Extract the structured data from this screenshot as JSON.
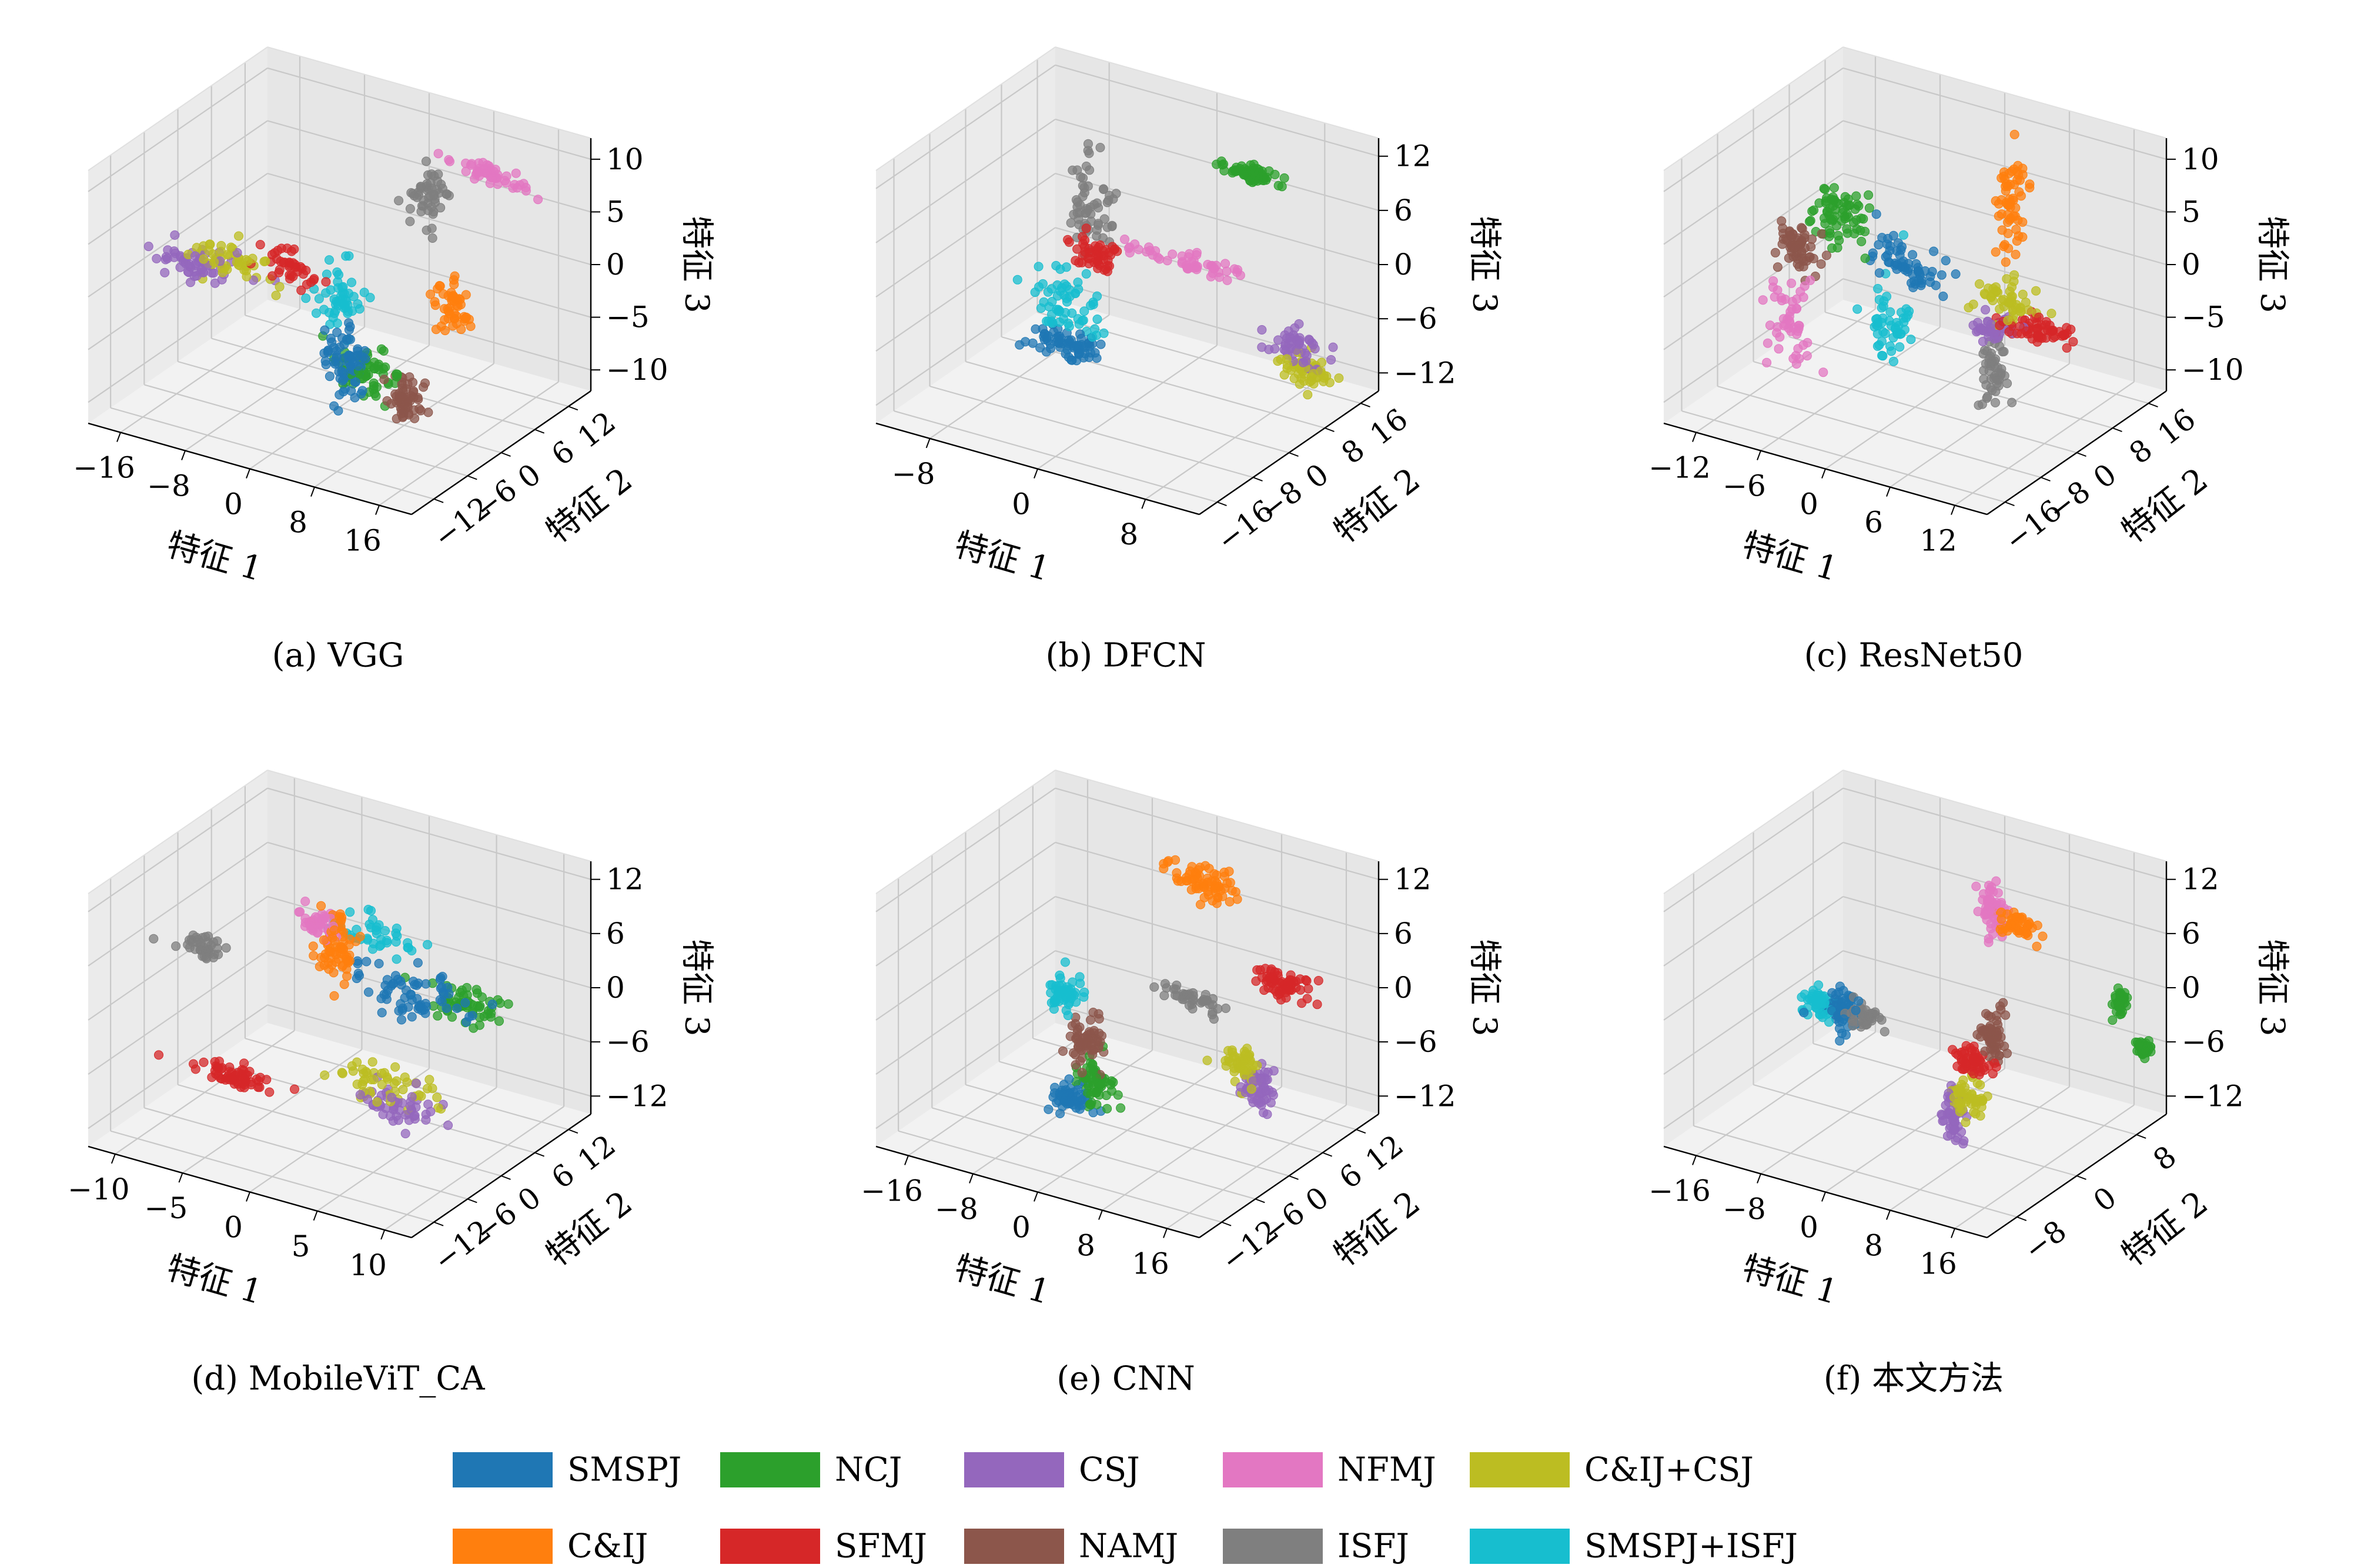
{
  "figure": {
    "legend": [
      {
        "name": "SMSPJ",
        "color": "#1f77b4"
      },
      {
        "name": "NCJ",
        "color": "#2ca02c"
      },
      {
        "name": "CSJ",
        "color": "#9467bd"
      },
      {
        "name": "NFMJ",
        "color": "#e377c2"
      },
      {
        "name": "C&IJ+CSJ",
        "color": "#bcbd22"
      },
      {
        "name": "C&IJ",
        "color": "#ff7f0e"
      },
      {
        "name": "SFMJ",
        "color": "#d62728"
      },
      {
        "name": "NAMJ",
        "color": "#8c564b"
      },
      {
        "name": "ISFJ",
        "color": "#7f7f7f"
      },
      {
        "name": "SMSPJ+ISFJ",
        "color": "#17becf"
      }
    ]
  },
  "chart_data": [
    {
      "type": "scatter",
      "caption": "(a) VGG",
      "xlabel": "特征 1",
      "ylabel": "特征 2",
      "zlabel": "特征 3",
      "x_ticks": [
        -16,
        -8,
        0,
        8,
        16
      ],
      "y_ticks": [
        -12,
        -6,
        0,
        6,
        12
      ],
      "z_ticks": [
        -10,
        -5,
        0,
        5,
        10
      ],
      "xlim": [
        -20,
        20
      ],
      "ylim": [
        -16,
        16
      ],
      "zlim": [
        -12,
        12
      ],
      "grid": true,
      "clusters": [
        {
          "name": "NFMJ",
          "center": [
            12,
            10,
            9
          ],
          "spread": [
            2.5,
            0.4,
            0.4
          ],
          "n": 50
        },
        {
          "name": "ISFJ",
          "center": [
            4,
            10,
            5
          ],
          "spread": [
            1.2,
            0.4,
            1.4
          ],
          "n": 50
        },
        {
          "name": "CSJ",
          "center": [
            -16,
            -2,
            -1
          ],
          "spread": [
            2.5,
            0.4,
            0.8
          ],
          "n": 60
        },
        {
          "name": "C&IJ+CSJ",
          "center": [
            -12,
            -2,
            0
          ],
          "spread": [
            2.5,
            0.4,
            0.8
          ],
          "n": 50
        },
        {
          "name": "SFMJ",
          "center": [
            -5,
            -2,
            1
          ],
          "spread": [
            2.0,
            0.4,
            0.8
          ],
          "n": 40
        },
        {
          "name": "SMSPJ+ISFJ",
          "center": [
            -1,
            2,
            -3
          ],
          "spread": [
            1.2,
            0.4,
            1.5
          ],
          "n": 50
        },
        {
          "name": "C&IJ",
          "center": [
            10,
            6,
            -3
          ],
          "spread": [
            1.0,
            0.4,
            1.2
          ],
          "n": 50
        },
        {
          "name": "SMSPJ",
          "center": [
            0,
            1,
            -8
          ],
          "spread": [
            1.2,
            0.5,
            1.5
          ],
          "n": 70
        },
        {
          "name": "NCJ",
          "center": [
            2,
            2,
            -9
          ],
          "spread": [
            2.0,
            0.6,
            1.2
          ],
          "n": 60
        },
        {
          "name": "NAMJ",
          "center": [
            6,
            3,
            -11
          ],
          "spread": [
            1.0,
            0.6,
            1.2
          ],
          "n": 60
        }
      ]
    },
    {
      "type": "scatter",
      "caption": "(b) DFCN",
      "xlabel": "特征 1",
      "ylabel": "特征 2",
      "zlabel": "特征 3",
      "x_ticks": [
        -8,
        0,
        8
      ],
      "y_ticks": [
        -16,
        -8,
        0,
        8,
        16
      ],
      "z_ticks": [
        -12,
        -6,
        0,
        6,
        12
      ],
      "xlim": [
        -12,
        12
      ],
      "ylim": [
        -20,
        20
      ],
      "zlim": [
        -14,
        14
      ],
      "grid": true,
      "clusters": [
        {
          "name": "NCJ",
          "center": [
            4,
            16,
            8
          ],
          "spread": [
            1.2,
            0.4,
            0.4
          ],
          "n": 60
        },
        {
          "name": "ISFJ",
          "center": [
            -4,
            4,
            5
          ],
          "spread": [
            0.8,
            0.5,
            2.5
          ],
          "n": 60
        },
        {
          "name": "SFMJ",
          "center": [
            -3,
            2,
            1
          ],
          "spread": [
            0.8,
            0.5,
            1.0
          ],
          "n": 50
        },
        {
          "name": "NFMJ",
          "center": [
            3,
            4,
            2
          ],
          "spread": [
            2.5,
            0.4,
            0.5
          ],
          "n": 50
        },
        {
          "name": "SMSPJ+ISFJ",
          "center": [
            -5,
            2,
            -5
          ],
          "spread": [
            1.2,
            0.5,
            2.0
          ],
          "n": 60
        },
        {
          "name": "SMSPJ",
          "center": [
            -5,
            2,
            -10
          ],
          "spread": [
            1.2,
            0.5,
            1.0
          ],
          "n": 70
        },
        {
          "name": "CSJ",
          "center": [
            8,
            14,
            -9
          ],
          "spread": [
            1.0,
            0.5,
            1.0
          ],
          "n": 50
        },
        {
          "name": "C&IJ+CSJ",
          "center": [
            9,
            14,
            -11
          ],
          "spread": [
            1.0,
            0.5,
            1.0
          ],
          "n": 50
        }
      ]
    },
    {
      "type": "scatter",
      "caption": "(c) ResNet50",
      "xlabel": "特征 1",
      "ylabel": "特征 2",
      "zlabel": "特征 3",
      "x_ticks": [
        -12,
        -6,
        0,
        6,
        12
      ],
      "y_ticks": [
        -16,
        -8,
        0,
        8,
        16
      ],
      "z_ticks": [
        -10,
        -5,
        0,
        5,
        10
      ],
      "xlim": [
        -15,
        15
      ],
      "ylim": [
        -20,
        20
      ],
      "zlim": [
        -12,
        12
      ],
      "grid": true,
      "clusters": [
        {
          "name": "C&IJ",
          "center": [
            4,
            12,
            5
          ],
          "spread": [
            0.6,
            0.4,
            2.5
          ],
          "n": 60
        },
        {
          "name": "NCJ",
          "center": [
            -8,
            2,
            3
          ],
          "spread": [
            1.5,
            0.5,
            1.5
          ],
          "n": 70
        },
        {
          "name": "NAMJ",
          "center": [
            -11,
            0,
            0
          ],
          "spread": [
            1.0,
            0.5,
            1.2
          ],
          "n": 60
        },
        {
          "name": "SMSPJ",
          "center": [
            -2,
            4,
            0
          ],
          "spread": [
            2.0,
            0.5,
            1.2
          ],
          "n": 60
        },
        {
          "name": "NFMJ",
          "center": [
            -11,
            -2,
            -6
          ],
          "spread": [
            1.0,
            0.5,
            2.0
          ],
          "n": 50
        },
        {
          "name": "SMSPJ+ISFJ",
          "center": [
            -4,
            4,
            -6
          ],
          "spread": [
            1.0,
            0.5,
            2.0
          ],
          "n": 50
        },
        {
          "name": "C&IJ+CSJ",
          "center": [
            6,
            6,
            -2
          ],
          "spread": [
            1.5,
            0.5,
            1.0
          ],
          "n": 50
        },
        {
          "name": "SFMJ",
          "center": [
            9,
            6,
            -4
          ],
          "spread": [
            2.0,
            0.5,
            0.6
          ],
          "n": 60
        },
        {
          "name": "CSJ",
          "center": [
            5,
            6,
            -5
          ],
          "spread": [
            1.0,
            0.5,
            0.6
          ],
          "n": 40
        },
        {
          "name": "ISFJ",
          "center": [
            4,
            8,
            -10
          ],
          "spread": [
            0.6,
            0.4,
            1.8
          ],
          "n": 50
        }
      ]
    },
    {
      "type": "scatter",
      "caption": "(d) MobileViT_CA",
      "xlabel": "特征 1",
      "ylabel": "特征 2",
      "zlabel": "特征 3",
      "x_ticks": [
        -10,
        -5,
        0,
        5,
        10
      ],
      "y_ticks": [
        -12,
        -6,
        0,
        6,
        12
      ],
      "z_ticks": [
        -12,
        -6,
        0,
        6,
        12
      ],
      "xlim": [
        -12,
        12
      ],
      "ylim": [
        -16,
        16
      ],
      "zlim": [
        -14,
        14
      ],
      "grid": true,
      "clusters": [
        {
          "name": "ISFJ",
          "center": [
            -10,
            0,
            2
          ],
          "spread": [
            1.0,
            0.5,
            0.6
          ],
          "n": 40
        },
        {
          "name": "NFMJ",
          "center": [
            -3,
            4,
            6
          ],
          "spread": [
            0.8,
            0.5,
            0.8
          ],
          "n": 40
        },
        {
          "name": "C&IJ",
          "center": [
            -2,
            4,
            4
          ],
          "spread": [
            0.8,
            0.5,
            2.0
          ],
          "n": 70
        },
        {
          "name": "SMSPJ+ISFJ",
          "center": [
            0,
            6,
            5
          ],
          "spread": [
            2.0,
            0.5,
            1.0
          ],
          "n": 40
        },
        {
          "name": "SMSPJ",
          "center": [
            3,
            6,
            0
          ],
          "spread": [
            2.0,
            0.5,
            1.5
          ],
          "n": 70
        },
        {
          "name": "NCJ",
          "center": [
            6,
            8,
            -1
          ],
          "spread": [
            1.5,
            0.5,
            1.2
          ],
          "n": 60
        },
        {
          "name": "SFMJ",
          "center": [
            -7,
            -2,
            -10
          ],
          "spread": [
            1.8,
            0.5,
            0.6
          ],
          "n": 60
        },
        {
          "name": "C&IJ+CSJ",
          "center": [
            2,
            4,
            -10
          ],
          "spread": [
            2.0,
            0.5,
            1.2
          ],
          "n": 50
        },
        {
          "name": "CSJ",
          "center": [
            3,
            4,
            -12
          ],
          "spread": [
            1.5,
            0.5,
            1.0
          ],
          "n": 50
        }
      ]
    },
    {
      "type": "scatter",
      "caption": "(e) CNN",
      "xlabel": "特征 1",
      "ylabel": "特征 2",
      "zlabel": "特征 3",
      "x_ticks": [
        -16,
        -8,
        0,
        8,
        16
      ],
      "y_ticks": [
        -12,
        -6,
        0,
        6,
        12
      ],
      "z_ticks": [
        -12,
        -6,
        0,
        6,
        12
      ],
      "xlim": [
        -20,
        20
      ],
      "ylim": [
        -16,
        16
      ],
      "zlim": [
        -14,
        14
      ],
      "grid": true,
      "clusters": [
        {
          "name": "C&IJ",
          "center": [
            4,
            8,
            11
          ],
          "spread": [
            2.0,
            0.5,
            1.0
          ],
          "n": 70
        },
        {
          "name": "ISFJ",
          "center": [
            4,
            6,
            -1
          ],
          "spread": [
            2.0,
            0.5,
            0.5
          ],
          "n": 40
        },
        {
          "name": "SFMJ",
          "center": [
            12,
            10,
            1
          ],
          "spread": [
            1.5,
            0.5,
            0.8
          ],
          "n": 60
        },
        {
          "name": "SMSPJ+ISFJ",
          "center": [
            -8,
            0,
            -1
          ],
          "spread": [
            1.0,
            0.5,
            1.0
          ],
          "n": 50
        },
        {
          "name": "NAMJ",
          "center": [
            -5,
            0,
            -5
          ],
          "spread": [
            1.2,
            0.5,
            1.2
          ],
          "n": 60
        },
        {
          "name": "NCJ",
          "center": [
            -4,
            0,
            -10
          ],
          "spread": [
            1.2,
            0.5,
            1.5
          ],
          "n": 60
        },
        {
          "name": "SMSPJ",
          "center": [
            -7,
            0,
            -12
          ],
          "spread": [
            1.2,
            0.5,
            0.8
          ],
          "n": 60
        },
        {
          "name": "C&IJ+CSJ",
          "center": [
            9,
            8,
            -8
          ],
          "spread": [
            1.2,
            0.5,
            1.0
          ],
          "n": 50
        },
        {
          "name": "CSJ",
          "center": [
            11,
            8,
            -10
          ],
          "spread": [
            1.2,
            0.5,
            1.0
          ],
          "n": 60
        }
      ]
    },
    {
      "type": "scatter",
      "caption": "(f) 本文方法",
      "xlabel": "特征 1",
      "ylabel": "特征 2",
      "zlabel": "特征 3",
      "x_ticks": [
        -16,
        -8,
        0,
        8,
        16
      ],
      "y_ticks": [
        -8,
        0,
        8
      ],
      "z_ticks": [
        -12,
        -6,
        0,
        6,
        12
      ],
      "xlim": [
        -20,
        20
      ],
      "ylim": [
        -12,
        12
      ],
      "zlim": [
        -14,
        14
      ],
      "grid": true,
      "clusters": [
        {
          "name": "NFMJ",
          "center": [
            4,
            6,
            8
          ],
          "spread": [
            0.8,
            0.4,
            1.2
          ],
          "n": 60
        },
        {
          "name": "C&IJ",
          "center": [
            7,
            6,
            7
          ],
          "spread": [
            1.2,
            0.4,
            0.6
          ],
          "n": 50
        },
        {
          "name": "SMSPJ+ISFJ",
          "center": [
            -12,
            0,
            -3
          ],
          "spread": [
            1.0,
            0.4,
            0.8
          ],
          "n": 50
        },
        {
          "name": "SMSPJ",
          "center": [
            -9,
            0,
            -3
          ],
          "spread": [
            1.0,
            0.4,
            1.2
          ],
          "n": 60
        },
        {
          "name": "ISFJ",
          "center": [
            -6,
            0,
            -3
          ],
          "spread": [
            1.0,
            0.4,
            0.6
          ],
          "n": 40
        },
        {
          "name": "NAMJ",
          "center": [
            6,
            4,
            -4
          ],
          "spread": [
            0.8,
            0.4,
            1.2
          ],
          "n": 60
        },
        {
          "name": "SFMJ",
          "center": [
            4,
            3,
            -7
          ],
          "spread": [
            1.2,
            0.4,
            0.6
          ],
          "n": 50
        },
        {
          "name": "C&IJ+CSJ",
          "center": [
            4,
            3,
            -11
          ],
          "spread": [
            1.2,
            0.4,
            1.0
          ],
          "n": 50
        },
        {
          "name": "CSJ",
          "center": [
            2,
            3,
            -14
          ],
          "spread": [
            0.6,
            0.4,
            1.5
          ],
          "n": 50
        },
        {
          "name": "NCJ",
          "center": [
            18,
            8,
            0
          ],
          "spread": [
            0.4,
            0.3,
            0.6
          ],
          "n": 40
        },
        {
          "name": "NCJ",
          "center": [
            20,
            9,
            -5
          ],
          "spread": [
            0.4,
            0.3,
            0.4
          ],
          "n": 40
        }
      ]
    }
  ]
}
